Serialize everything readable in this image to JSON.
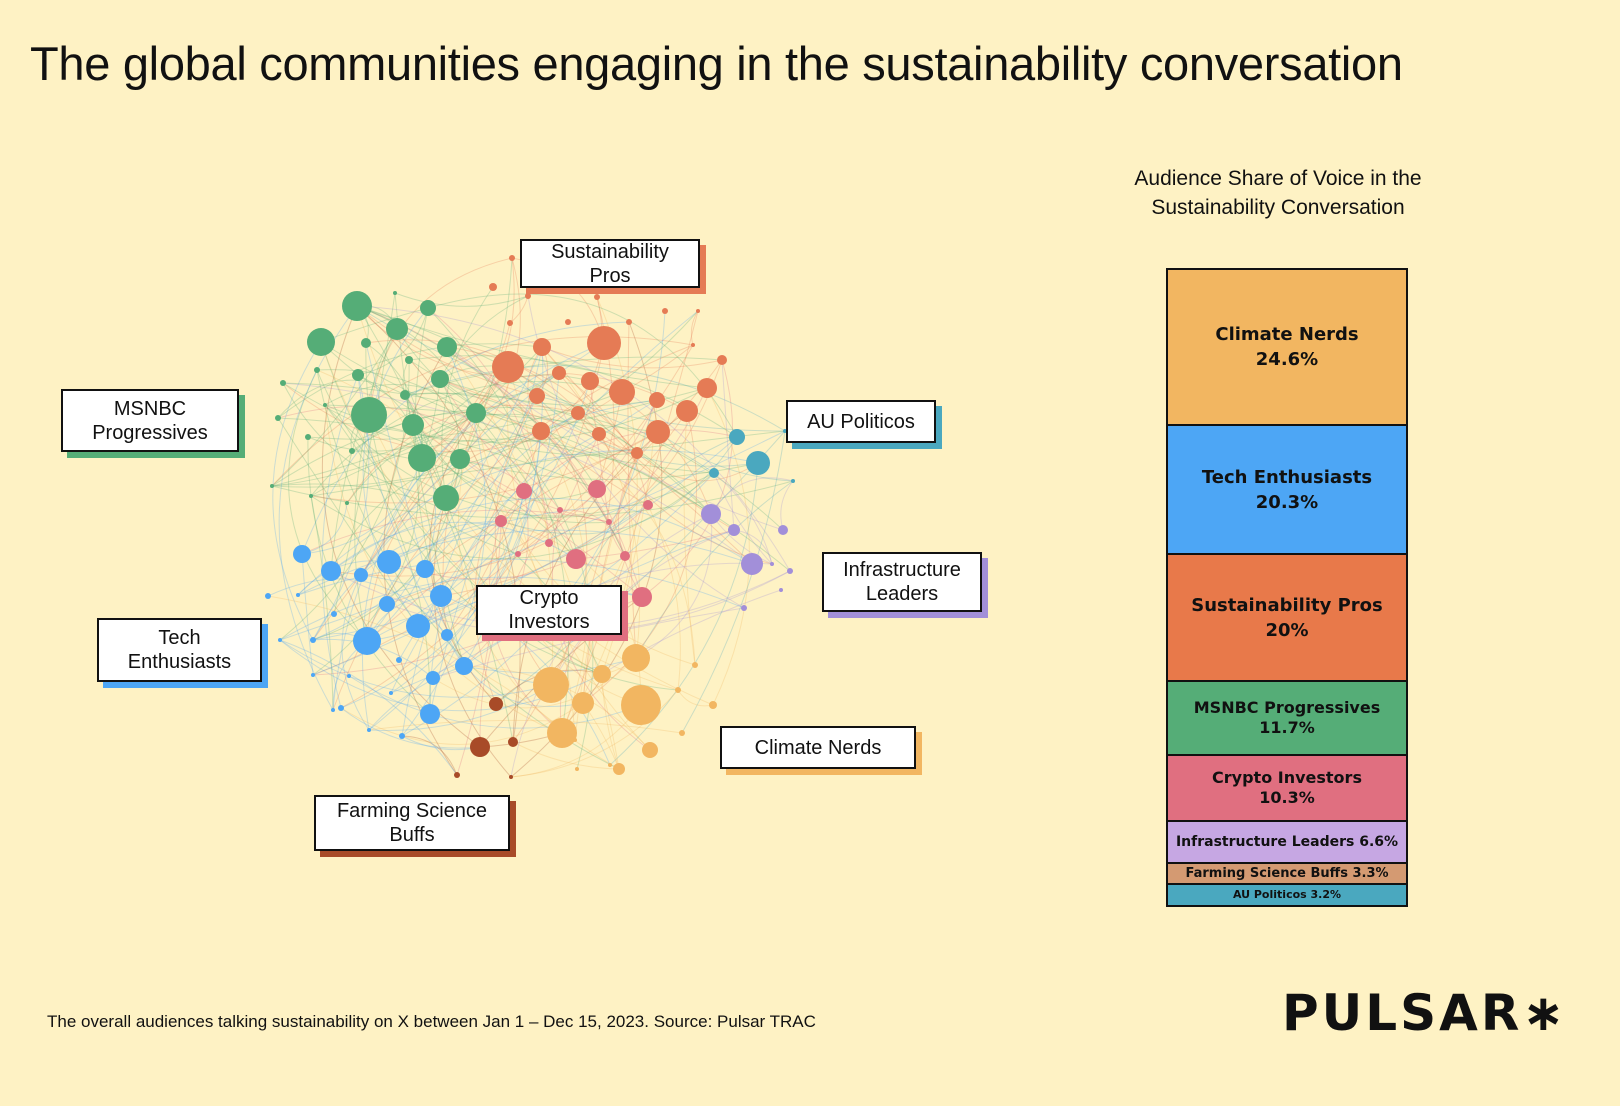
{
  "title": "The global communities engaging in the sustainability conversation",
  "footer": "The overall audiences talking sustainability on X between Jan 1 – Dec 15, 2023. Source: Pulsar TRAC",
  "logo": "PULSAR∗",
  "network": {
    "communities": [
      {
        "id": "msnbc",
        "label": "MSNBC Progressives",
        "color": "#55AD77"
      },
      {
        "id": "sust",
        "label": "Sustainability Pros",
        "color": "#E57B55"
      },
      {
        "id": "crypto",
        "label": "Crypto Investors",
        "color": "#E06F80"
      },
      {
        "id": "tech",
        "label": "Tech Enthusiasts",
        "color": "#4DA6F5"
      },
      {
        "id": "climate",
        "label": "Climate Nerds",
        "color": "#F2B661"
      },
      {
        "id": "farming",
        "label": "Farming Science Buffs",
        "color": "#A84B28"
      },
      {
        "id": "au",
        "label": "AU Politicos",
        "color": "#4AA8BF"
      },
      {
        "id": "infra",
        "label": "Infrastructure Leaders",
        "color": "#A28FD9"
      }
    ],
    "labels": {
      "sust": [
        "Sustainability",
        "Pros"
      ],
      "msnbc": [
        "MSNBC",
        "Progressives"
      ],
      "au": [
        "AU Politicos"
      ],
      "infra": [
        "Infrastructure",
        "Leaders"
      ],
      "tech": [
        "Tech",
        "Enthusiasts"
      ],
      "crypto": [
        "Crypto",
        "Investors"
      ],
      "climate": [
        "Climate Nerds"
      ],
      "farming": [
        "Farming Science",
        "Buffs"
      ]
    }
  },
  "chart_data": {
    "type": "bar",
    "stacked": true,
    "title": "Audience Share of Voice in the Sustainability Conversation",
    "unit": "%",
    "categories": [
      "Climate Nerds",
      "Tech Enthusiasts",
      "Sustainability Pros",
      "MSNBC Progressives",
      "Crypto Investors",
      "Infrastructure Leaders",
      "Farming Science Buffs",
      "AU Politicos"
    ],
    "values": [
      24.6,
      20.3,
      20,
      11.7,
      10.3,
      6.6,
      3.3,
      3.2
    ],
    "value_labels": [
      "24.6%",
      "20.3%",
      "20%",
      "11.7%",
      "10.3%",
      "6.6%",
      "3.3%",
      "3.2%"
    ],
    "colors": [
      "#F2B661",
      "#4DA6F5",
      "#E8794A",
      "#55AD77",
      "#E06F80",
      "#C6A7E3",
      "#D49A72",
      "#4AA8BF"
    ]
  }
}
